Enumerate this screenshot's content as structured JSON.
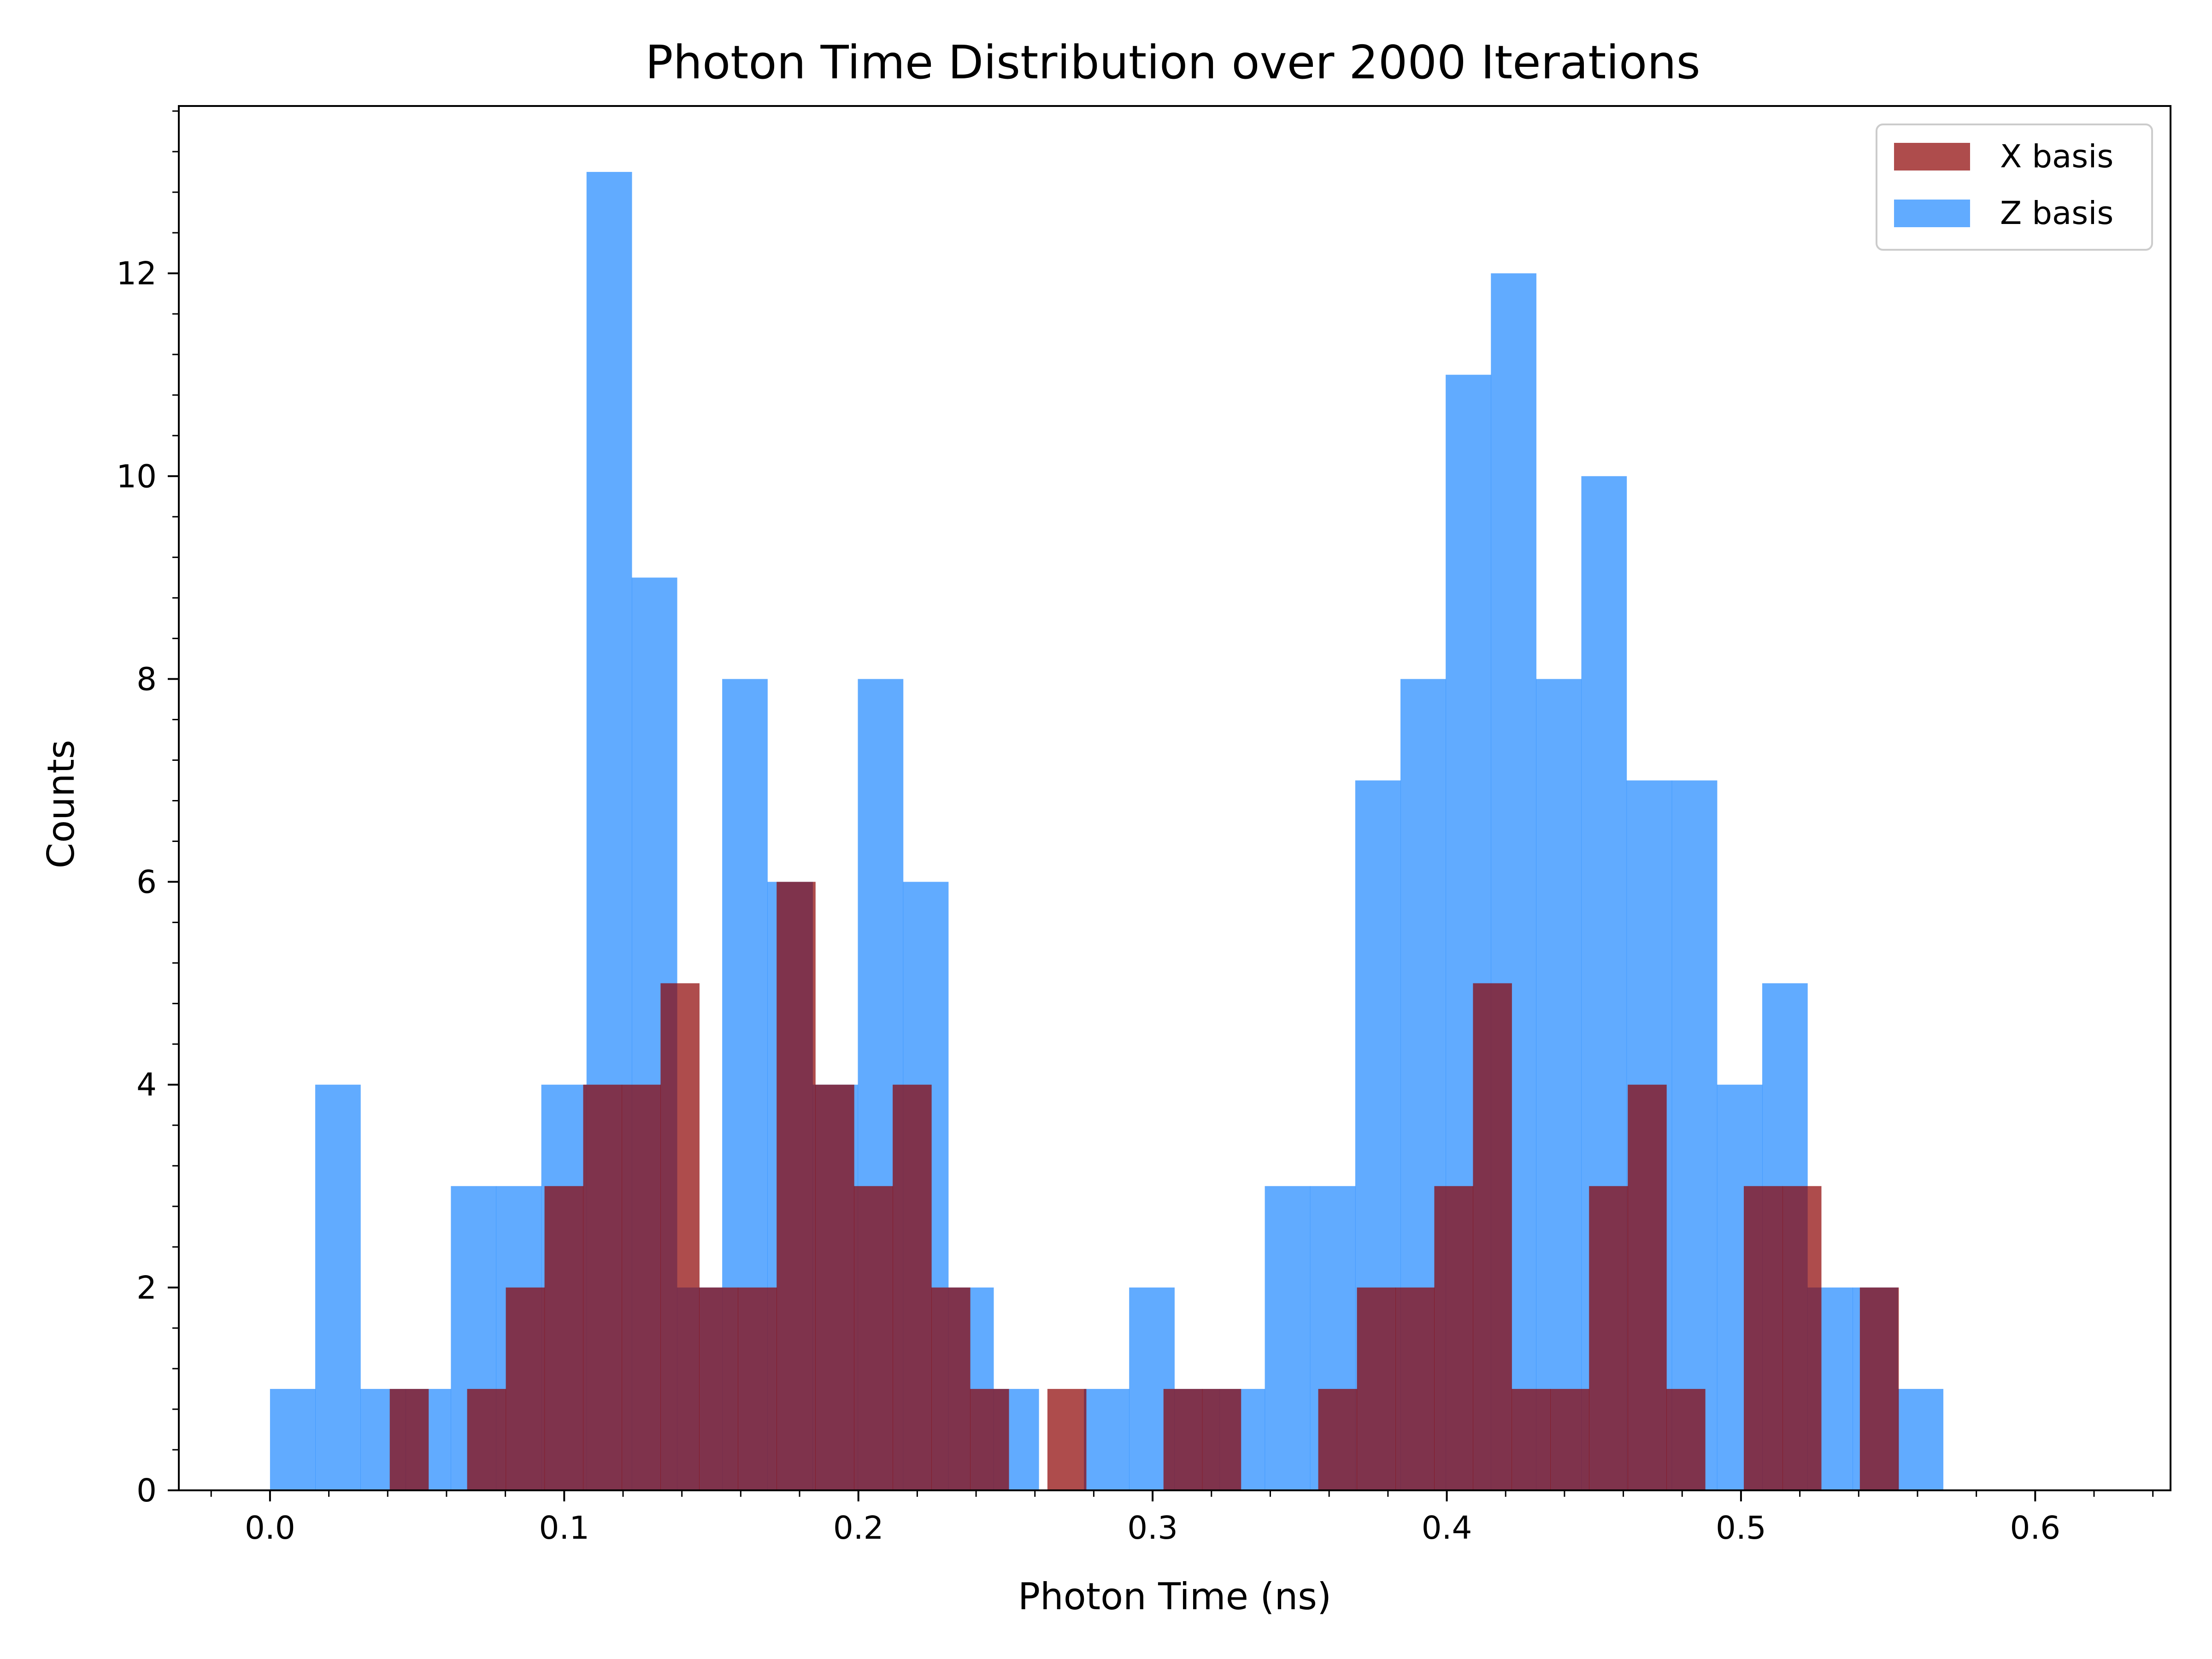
{
  "chart_data": {
    "type": "bar",
    "title": "Photon Time Distribution over 2000 Iterations",
    "xlabel": "Photon Time (ns)",
    "ylabel": "Counts",
    "xlim": [
      -0.031,
      0.646
    ],
    "ylim": [
      0,
      13.65
    ],
    "x_ticks": [
      "0.0",
      "0.1",
      "0.2",
      "0.3",
      "0.4",
      "0.5",
      "0.6"
    ],
    "x_tick_values": [
      0.0,
      0.1,
      0.2,
      0.3,
      0.4,
      0.5,
      0.6
    ],
    "y_ticks": [
      "0",
      "2",
      "4",
      "6",
      "8",
      "10",
      "12"
    ],
    "y_tick_values": [
      0,
      2,
      4,
      6,
      8,
      10,
      12
    ],
    "grid": false,
    "legend_position": "top-right",
    "series": [
      {
        "name": "Z basis",
        "color": "#1E88FF",
        "opacity": 0.7,
        "bin_start": 0.0,
        "bin_width": 0.01537,
        "counts": [
          1,
          4,
          1,
          1,
          3,
          3,
          4,
          13,
          9,
          2,
          8,
          6,
          4,
          8,
          6,
          2,
          1,
          0,
          1,
          2,
          1,
          1,
          3,
          3,
          7,
          8,
          11,
          12,
          8,
          10,
          7,
          7,
          4,
          5,
          2,
          2,
          1
        ]
      },
      {
        "name": "X basis",
        "color": "#8B0000",
        "opacity": 0.7,
        "bin_start": 0.0407,
        "bin_width": 0.01315,
        "counts": [
          1,
          0,
          1,
          2,
          3,
          4,
          4,
          5,
          2,
          2,
          6,
          4,
          3,
          4,
          2,
          1,
          0,
          1,
          0,
          0,
          1,
          1,
          0,
          0,
          1,
          2,
          2,
          3,
          5,
          1,
          1,
          3,
          4,
          1,
          0,
          3,
          3,
          0,
          2
        ]
      }
    ]
  }
}
